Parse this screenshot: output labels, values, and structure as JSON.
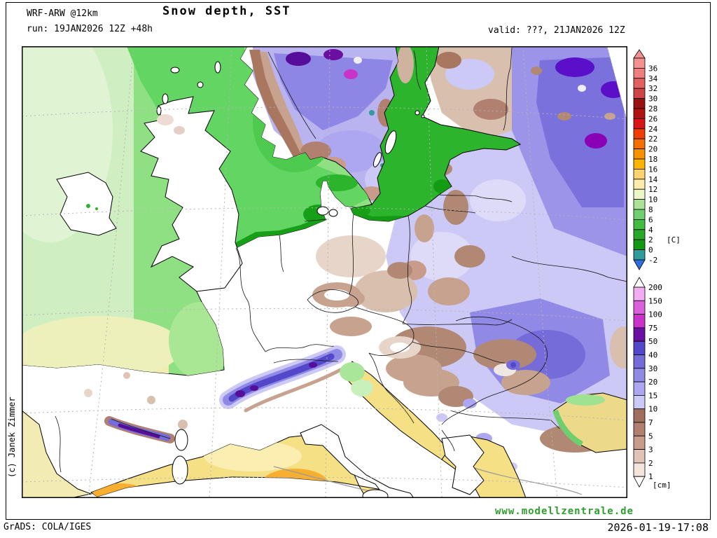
{
  "header": {
    "model": "WRF-ARW @12km",
    "title": "Snow depth, SST",
    "run": "run: 19JAN2026 12Z +48h",
    "valid": "valid: ???, 21JAN2026 12Z"
  },
  "copyright": "(c) Janek Zimmer",
  "footer": {
    "website": "www.modellzentrale.de",
    "website_color": "#2e9e2e",
    "credit": "GrADS: COLA/IGES",
    "timestamp": "2026-01-19-17:08"
  },
  "chart_data": {
    "type": "map",
    "title": "Snow depth, SST",
    "colorbars": [
      {
        "id": "sst",
        "unit": "[C]",
        "labels": [
          "36",
          "34",
          "32",
          "30",
          "28",
          "26",
          "24",
          "22",
          "20",
          "18",
          "16",
          "14",
          "12",
          "10",
          "8",
          "6",
          "4",
          "2",
          "0",
          "-2"
        ],
        "segment_colors": [
          "#f59090",
          "#ef7f7f",
          "#e26060",
          "#cd4545",
          "#971111",
          "#b31212",
          "#d91616",
          "#ef3d05",
          "#f76e00",
          "#fa9200",
          "#fcb400",
          "#fcd36e",
          "#fdecab",
          "#ecf6c8",
          "#abe295",
          "#70d070",
          "#41bd41",
          "#2aa82a",
          "#129812",
          "#2f9c9c"
        ],
        "arrow_top_color": "#f59090",
        "arrow_bottom_color": "#2f6fe0",
        "unit_at_label": "2"
      },
      {
        "id": "snow",
        "unit": "[cm]",
        "labels": [
          "200",
          "150",
          "100",
          "75",
          "50",
          "40",
          "30",
          "20",
          "15",
          "10",
          "7",
          "5",
          "3",
          "2",
          "1"
        ],
        "segment_colors": [
          "#f2adf2",
          "#dc60dc",
          "#c933c9",
          "#6a0fa2",
          "#5348ca",
          "#756cda",
          "#9089e6",
          "#ada6f0",
          "#cdc9f7",
          "#a06f5f",
          "#b18070",
          "#c89b8b",
          "#e0c3b5",
          "#f3e5db"
        ],
        "arrow_top_color": "#ffffff",
        "arrow_bottom_color": "#ffffff",
        "unit_at_label": "bottom"
      }
    ]
  }
}
